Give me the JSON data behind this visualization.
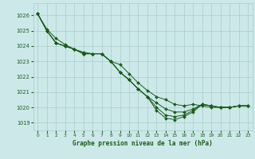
{
  "title": "Graphe pression niveau de la mer (hPa)",
  "bg_color": "#cce8e8",
  "grid_color": "#aacccc",
  "line_color": "#1a5c1a",
  "marker_color": "#1a5c1a",
  "xlim": [
    -0.5,
    23.5
  ],
  "ylim": [
    1018.5,
    1026.8
  ],
  "yticks": [
    1019,
    1020,
    1021,
    1022,
    1023,
    1024,
    1025,
    1026
  ],
  "xticks": [
    0,
    1,
    2,
    3,
    4,
    5,
    6,
    7,
    8,
    9,
    10,
    11,
    12,
    13,
    14,
    15,
    16,
    17,
    18,
    19,
    20,
    21,
    22,
    23
  ],
  "series": [
    [
      1026.1,
      1025.1,
      1024.5,
      1024.1,
      1023.8,
      1023.6,
      1023.5,
      1023.5,
      1023.0,
      1022.8,
      1022.2,
      1021.6,
      1021.1,
      1020.7,
      1020.5,
      1020.2,
      1020.1,
      1020.2,
      1020.1,
      1020.0,
      1020.0,
      1020.0,
      1020.1,
      1020.1
    ],
    [
      1026.1,
      1025.0,
      1024.2,
      1024.0,
      1023.8,
      1023.5,
      1023.5,
      1023.5,
      1023.0,
      1022.3,
      1021.8,
      1021.2,
      1020.7,
      1020.3,
      1019.9,
      1019.7,
      1019.7,
      1019.9,
      1020.2,
      1020.1,
      1020.0,
      1020.0,
      1020.1,
      1020.1
    ],
    [
      1026.1,
      1025.0,
      1024.2,
      1024.0,
      1023.8,
      1023.5,
      1023.5,
      1023.5,
      1023.0,
      1022.3,
      1021.8,
      1021.2,
      1020.7,
      1020.0,
      1019.5,
      1019.4,
      1019.5,
      1019.8,
      1020.2,
      1020.1,
      1020.0,
      1020.0,
      1020.1,
      1020.1
    ],
    [
      1026.1,
      1025.0,
      1024.2,
      1024.0,
      1023.8,
      1023.5,
      1023.5,
      1023.5,
      1023.0,
      1022.3,
      1021.8,
      1021.2,
      1020.7,
      1019.8,
      1019.3,
      1019.2,
      1019.4,
      1019.7,
      1020.2,
      1020.1,
      1020.0,
      1020.0,
      1020.1,
      1020.1
    ]
  ]
}
